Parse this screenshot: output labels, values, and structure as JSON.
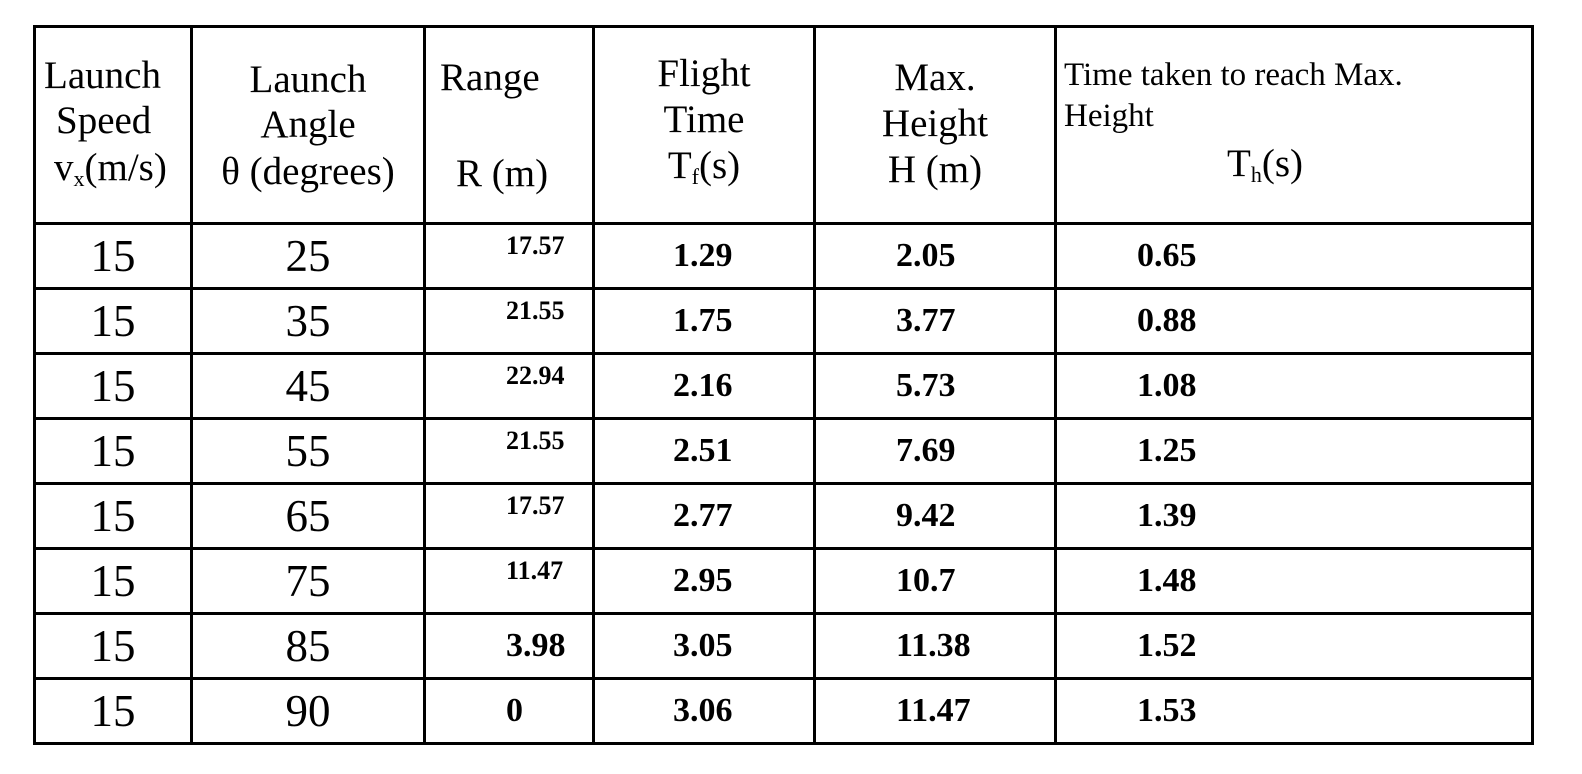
{
  "table": {
    "headers": {
      "speed": {
        "line1": "Launch",
        "line2": "Speed",
        "line3_main": "v",
        "line3_sub": "x",
        "line3_rest": "(m/s)"
      },
      "angle": {
        "line1": "Launch",
        "line2": "Angle",
        "line3": "θ (degrees)"
      },
      "range": {
        "line1": "Range",
        "line2": "R (m)"
      },
      "flight": {
        "line1": "Flight",
        "line2": "Time",
        "line3_main": "T",
        "line3_sub": "f",
        "line3_rest": "(s)"
      },
      "height": {
        "line1": "Max.",
        "line2": "Height",
        "line3": "H (m)"
      },
      "time_max": {
        "line1": "Time taken to reach Max.",
        "line2": "Height",
        "line3_main": "T",
        "line3_sub": "h",
        "line3_rest": "(s)"
      }
    },
    "rows": [
      {
        "speed": "15",
        "angle": "25",
        "range": "17.57",
        "flight": "1.29",
        "height": "2.05",
        "th": "0.65"
      },
      {
        "speed": "15",
        "angle": "35",
        "range": "21.55",
        "flight": "1.75",
        "height": "3.77",
        "th": "0.88"
      },
      {
        "speed": "15",
        "angle": "45",
        "range": "22.94",
        "flight": "2.16",
        "height": "5.73",
        "th": "1.08"
      },
      {
        "speed": "15",
        "angle": "55",
        "range": "21.55",
        "flight": "2.51",
        "height": "7.69",
        "th": "1.25"
      },
      {
        "speed": "15",
        "angle": "65",
        "range": "17.57",
        "flight": "2.77",
        "height": "9.42",
        "th": "1.39"
      },
      {
        "speed": "15",
        "angle": "75",
        "range": "11.47",
        "flight": "2.95",
        "height": "10.7",
        "th": "1.48"
      },
      {
        "speed": "15",
        "angle": "85",
        "range": "3.98",
        "flight": "3.05",
        "height": "11.38",
        "th": "1.52"
      },
      {
        "speed": "15",
        "angle": "90",
        "range": "0",
        "flight": "3.06",
        "height": "11.47",
        "th": "1.53"
      }
    ]
  }
}
